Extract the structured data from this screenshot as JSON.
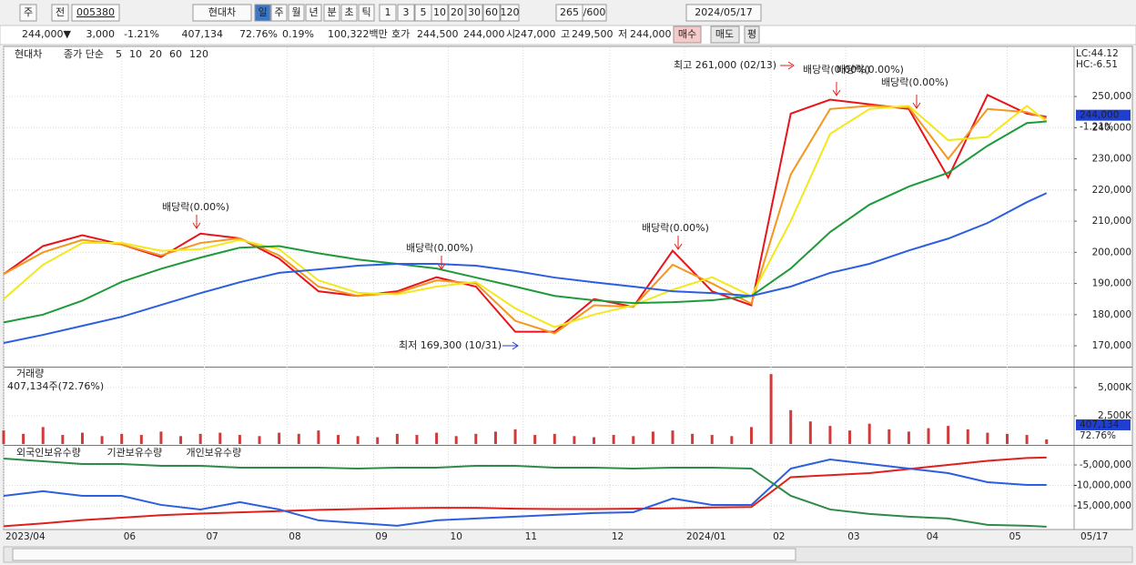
{
  "toolbar": {
    "items": [
      "주",
      "전",
      "005380",
      "현대차",
      "일",
      "주",
      "월",
      "년",
      "분",
      "초",
      "틱",
      "1",
      "3",
      "5",
      "10",
      "20",
      "30",
      "60",
      "120",
      "265",
      "/600",
      "2024/05/17"
    ]
  },
  "info": {
    "items": [
      "244,000▼",
      "3,000",
      "-1.21%",
      "407,134",
      "72.76%",
      "0.19%",
      "100,322백만",
      "호가",
      "244,500",
      "244,000",
      "시",
      "247,000",
      "고",
      "249,500",
      "저",
      "244,000",
      "매수",
      "매도",
      "평"
    ]
  },
  "chart_data": [
    {
      "type": "line",
      "title": "현대차",
      "legend_title": "종가 단순",
      "xlim": [
        0,
        272
      ],
      "ylim": [
        163300,
        265800
      ],
      "x": [
        0,
        10,
        20,
        30,
        40,
        50,
        60,
        70,
        80,
        90,
        100,
        110,
        120,
        130,
        140,
        150,
        160,
        170,
        180,
        190,
        200,
        210,
        220,
        230,
        240,
        250,
        260,
        265
      ],
      "xticks": [
        {
          "value": 0,
          "label": "2023/04"
        },
        {
          "value": 30,
          "label": "06"
        },
        {
          "value": 51,
          "label": "07"
        },
        {
          "value": 72,
          "label": "08"
        },
        {
          "value": 94,
          "label": "09"
        },
        {
          "value": 113,
          "label": "10"
        },
        {
          "value": 132,
          "label": "11"
        },
        {
          "value": 154,
          "label": "12"
        },
        {
          "value": 173,
          "label": "2024/01"
        },
        {
          "value": 195,
          "label": "02"
        },
        {
          "value": 214,
          "label": "03"
        },
        {
          "value": 234,
          "label": "04"
        },
        {
          "value": 255,
          "label": "05"
        }
      ],
      "end_label": "05/17",
      "yticks": [
        {
          "value": 170000,
          "label": "170,000"
        },
        {
          "value": 180000,
          "label": "180,000"
        },
        {
          "value": 190000,
          "label": "190,000"
        },
        {
          "value": 200000,
          "label": "200,000"
        },
        {
          "value": 210000,
          "label": "210,000"
        },
        {
          "value": 220000,
          "label": "220,000"
        },
        {
          "value": 230000,
          "label": "230,000"
        },
        {
          "value": 240000,
          "label": "240,000"
        },
        {
          "value": 250000,
          "label": "250,000"
        }
      ],
      "grid": true,
      "last": {
        "value": 244000,
        "label": "244,000",
        "change": "-1.21%"
      },
      "lc": "LC:44.12",
      "hc": "HC:-6.51",
      "annotations": [
        "최고 261,000 (02/13)",
        "배당락(0.00%)",
        "배당락(0.00%)",
        "배당락(0.00%)",
        "배당락(0.00%)",
        "배당락(0.00%)",
        "배당락(0.00%)",
        "최저 169,300 (10/31)"
      ],
      "series": [
        {
          "name": "5",
          "color": "#e8141b",
          "values": [
            193000,
            202000,
            205500,
            202500,
            198500,
            206000,
            204500,
            198000,
            187500,
            186000,
            187500,
            192000,
            189000,
            174500,
            174500,
            185000,
            182500,
            200500,
            187500,
            183000,
            244500,
            249000,
            247500,
            246000,
            224000,
            250500,
            244500,
            243500
          ]
        },
        {
          "name": "10",
          "color": "#f5961e",
          "values": [
            193000,
            200000,
            204000,
            202500,
            199000,
            203000,
            204500,
            199000,
            189000,
            186000,
            187000,
            191000,
            190000,
            178000,
            174000,
            183000,
            182500,
            196000,
            190000,
            183500,
            225000,
            246000,
            247000,
            246500,
            230000,
            246000,
            245000,
            243000
          ]
        },
        {
          "name": "20",
          "color": "#f2e81c",
          "values": [
            185000,
            196000,
            203000,
            203000,
            200500,
            201000,
            204000,
            201000,
            191000,
            187000,
            186500,
            189000,
            190500,
            182000,
            176000,
            180000,
            183000,
            188000,
            192000,
            186000,
            210000,
            238000,
            246000,
            247000,
            236000,
            237000,
            247000,
            242000
          ]
        },
        {
          "name": "60",
          "color": "#1f9a3a",
          "values": [
            177500,
            180000,
            184500,
            190500,
            194700,
            198300,
            201500,
            202000,
            199700,
            197700,
            196300,
            194800,
            191900,
            189000,
            186000,
            184600,
            183700,
            184000,
            184600,
            186000,
            194800,
            206500,
            215300,
            221100,
            225500,
            234200,
            241500,
            242000
          ]
        },
        {
          "name": "120",
          "color": "#2c5ee0",
          "values": [
            170900,
            173500,
            176400,
            179300,
            183100,
            186900,
            190400,
            193400,
            194500,
            195700,
            196300,
            196300,
            195700,
            194000,
            191900,
            190400,
            189000,
            187500,
            186900,
            186000,
            189000,
            193400,
            196300,
            200600,
            204400,
            209400,
            216100,
            219000
          ]
        }
      ]
    },
    {
      "type": "bar",
      "title": "거래량",
      "subtitle": "407,134주(72.76%)",
      "xlim": [
        0,
        272
      ],
      "ylim": [
        0,
        6774000
      ],
      "color": "#d03a3a",
      "yticks": [
        {
          "value": 2500000,
          "label": "2,500K"
        },
        {
          "value": 5000000,
          "label": "5,000K"
        }
      ],
      "last": {
        "value": 407134,
        "label": "407,134",
        "pct": "72.76%"
      },
      "x": [
        0,
        5,
        10,
        15,
        20,
        25,
        30,
        35,
        40,
        45,
        50,
        55,
        60,
        65,
        70,
        75,
        80,
        85,
        90,
        95,
        100,
        105,
        110,
        115,
        120,
        125,
        130,
        135,
        140,
        145,
        150,
        155,
        160,
        165,
        170,
        175,
        180,
        185,
        190,
        195,
        200,
        205,
        210,
        215,
        220,
        225,
        230,
        235,
        240,
        245,
        250,
        255,
        260,
        265
      ],
      "values": [
        1200000,
        900000,
        1500000,
        800000,
        1000000,
        700000,
        900000,
        800000,
        1100000,
        700000,
        900000,
        1000000,
        800000,
        700000,
        1000000,
        900000,
        1200000,
        800000,
        700000,
        600000,
        900000,
        800000,
        1000000,
        700000,
        900000,
        1100000,
        1300000,
        800000,
        900000,
        700000,
        600000,
        800000,
        700000,
        1100000,
        1200000,
        900000,
        800000,
        700000,
        1500000,
        6200000,
        3000000,
        2000000,
        1600000,
        1200000,
        1800000,
        1300000,
        1100000,
        1400000,
        1600000,
        1300000,
        1000000,
        900000,
        800000,
        407134
      ]
    },
    {
      "type": "line",
      "xlim": [
        0,
        272
      ],
      "ylim": [
        -20800000,
        -330000
      ],
      "yticks": [
        {
          "value": -15000000,
          "label": "-15,000,000"
        },
        {
          "value": -10000000,
          "label": "-10,000,000"
        },
        {
          "value": -5000000,
          "label": "-5,000,000"
        }
      ],
      "x": [
        0,
        10,
        20,
        30,
        40,
        50,
        60,
        70,
        80,
        90,
        100,
        110,
        120,
        130,
        140,
        150,
        160,
        170,
        180,
        190,
        200,
        210,
        220,
        230,
        240,
        250,
        260,
        265
      ],
      "series": [
        {
          "name": "외국인보유수량",
          "color": "#e0201b",
          "values": [
            -20000000,
            -19300000,
            -18500000,
            -17900000,
            -17300000,
            -16900000,
            -16600000,
            -16300000,
            -16000000,
            -15800000,
            -15600000,
            -15500000,
            -15500000,
            -15700000,
            -15800000,
            -15800000,
            -15700000,
            -15600000,
            -15400000,
            -15300000,
            -8000000,
            -7500000,
            -7000000,
            -6000000,
            -5000000,
            -4000000,
            -3300000,
            -3200000
          ]
        },
        {
          "name": "기관보유수량",
          "color": "#2c5ee0",
          "values": [
            -12560000,
            -11440000,
            -12560000,
            -12560000,
            -14780000,
            -15890000,
            -14110000,
            -15890000,
            -18560000,
            -19220000,
            -19890000,
            -18560000,
            -18110000,
            -17670000,
            -17220000,
            -16780000,
            -16560000,
            -13220000,
            -14780000,
            -14780000,
            -5890000,
            -3670000,
            -4780000,
            -5890000,
            -7000000,
            -9220000,
            -9890000,
            -9890000
          ]
        },
        {
          "name": "개인보유수량",
          "color": "#2e8b47",
          "values": [
            -3440000,
            -4110000,
            -4780000,
            -4780000,
            -5220000,
            -5220000,
            -5670000,
            -5670000,
            -5670000,
            -5890000,
            -5670000,
            -5670000,
            -5220000,
            -5220000,
            -5670000,
            -5670000,
            -5890000,
            -5670000,
            -5670000,
            -5890000,
            -12560000,
            -15890000,
            -17000000,
            -17670000,
            -18110000,
            -19670000,
            -19890000,
            -20110000
          ]
        }
      ]
    }
  ]
}
